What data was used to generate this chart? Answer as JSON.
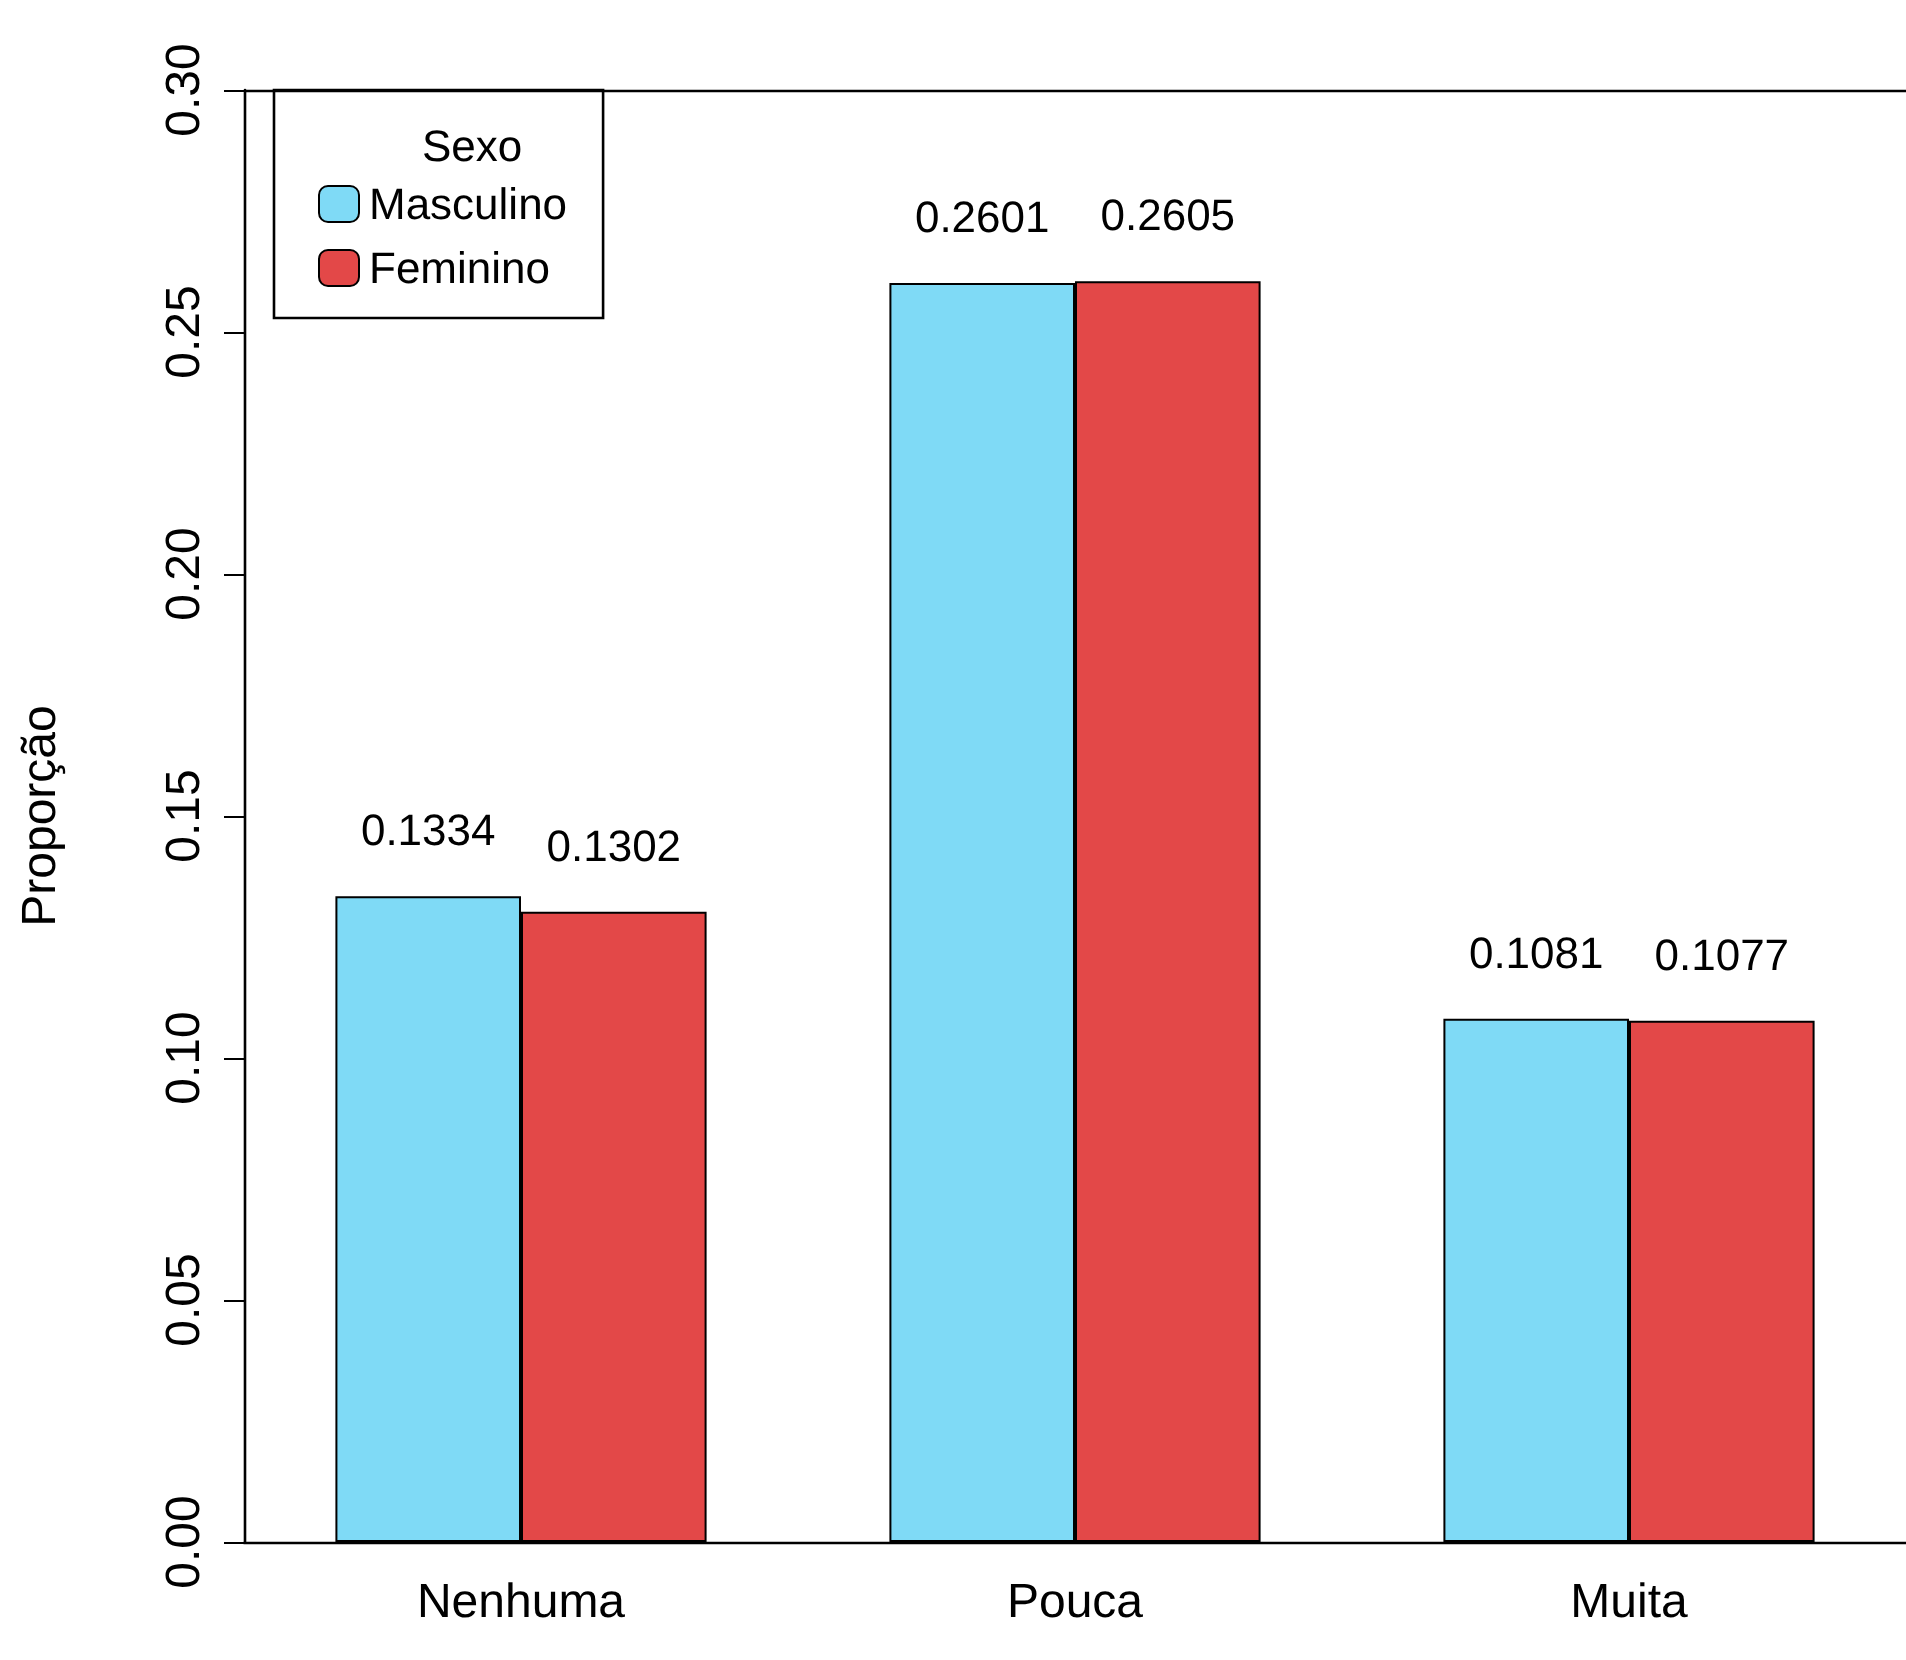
{
  "chart_data": {
    "type": "bar",
    "ylabel": "Proporção",
    "legend_title": "Sexo",
    "categories": [
      "Nenhuma",
      "Pouca",
      "Muita"
    ],
    "series": [
      {
        "name": "Masculino",
        "color": "#7fdaf6",
        "values": [
          0.1334,
          0.2601,
          0.1081
        ]
      },
      {
        "name": "Feminino",
        "color": "#e34848",
        "values": [
          0.1302,
          0.2605,
          0.1077
        ]
      }
    ],
    "ylim": [
      0,
      0.3
    ],
    "yticks": [
      {
        "value": 0,
        "label": "0.00"
      },
      {
        "value": 0.05,
        "label": "0.05"
      },
      {
        "value": 0.1,
        "label": "0.10"
      },
      {
        "value": 0.15,
        "label": "0.15"
      },
      {
        "value": 0.2,
        "label": "0.20"
      },
      {
        "value": 0.25,
        "label": "0.25"
      },
      {
        "value": 0.3,
        "label": "0.30"
      }
    ],
    "ref_lines": [
      {
        "axis": "y",
        "value": 0.3
      }
    ],
    "data_labels": true,
    "grid": false,
    "legend": "top left"
  }
}
